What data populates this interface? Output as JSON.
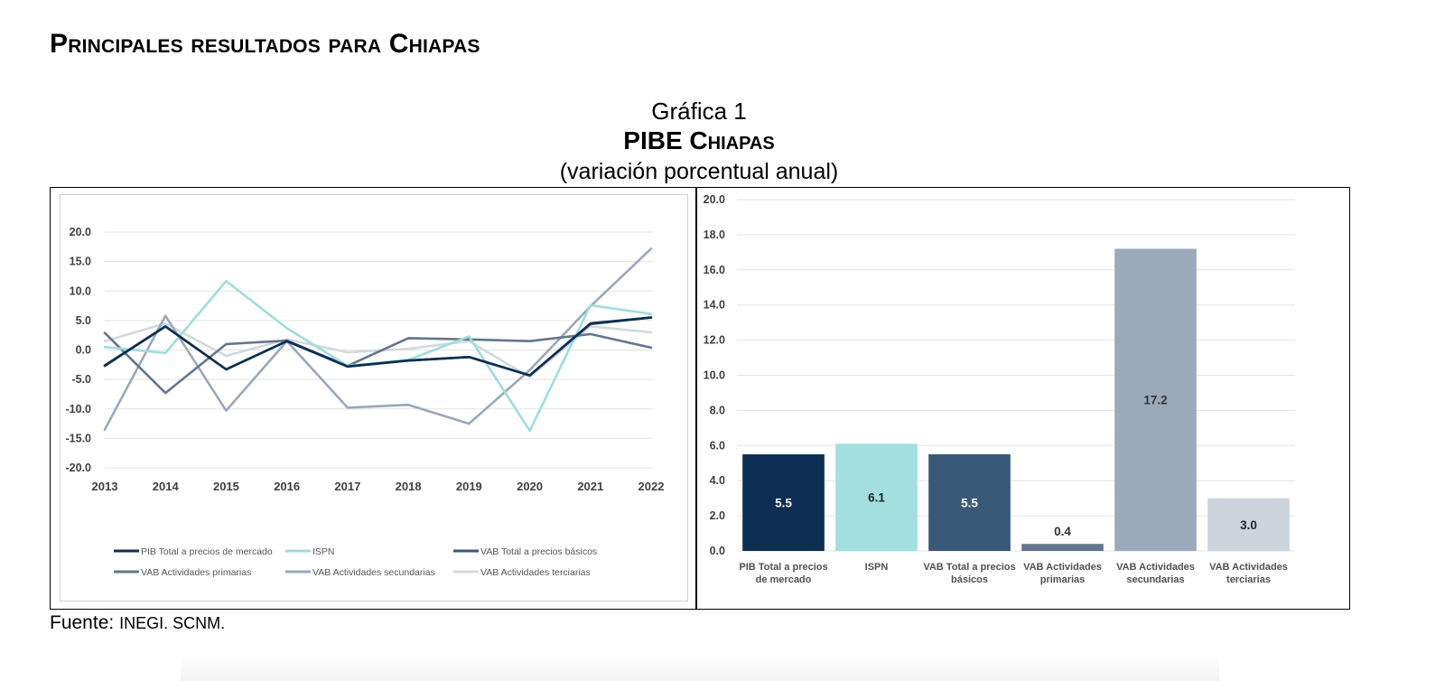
{
  "page": {
    "heading": "Principales resultados para Chiapas",
    "chart_title": "Gráfica 1",
    "chart_subtitle": "PIBE Chiapas",
    "chart_unit": "(variación porcentual anual)",
    "source_label": "Fuente:",
    "source_value": "INEGI. SCNM."
  },
  "chart_data": [
    {
      "type": "line",
      "title": "",
      "x": [
        "2013",
        "2014",
        "2015",
        "2016",
        "2017",
        "2018",
        "2019",
        "2020",
        "2021",
        "2022"
      ],
      "ylim": [
        -20,
        20
      ],
      "yticks": [
        "20.0",
        "15.0",
        "10.0",
        "5.0",
        "0.0",
        "-5.0",
        "-10.0",
        "-15.0",
        "-20.0"
      ],
      "legend_position": "bottom",
      "series": [
        {
          "name": "PIB Total a precios de mercado",
          "color": "#0b2e52",
          "values": [
            -2.7,
            4.0,
            -3.3,
            1.5,
            -2.8,
            -1.8,
            -1.2,
            -4.3,
            4.5,
            5.5
          ]
        },
        {
          "name": "ISPN",
          "color": "#9fdcdc",
          "values": [
            0.5,
            -0.5,
            11.7,
            3.7,
            -2.7,
            -1.7,
            2.3,
            -13.7,
            7.6,
            6.1
          ]
        },
        {
          "name": "VAB Total a precios básicos",
          "color": "#3a5878",
          "values": [
            -2.6,
            4.0,
            -3.3,
            1.5,
            -2.8,
            -1.8,
            -1.2,
            -4.3,
            4.4,
            5.5
          ]
        },
        {
          "name": "VAB Actividades primarias",
          "color": "#63768c",
          "values": [
            2.9,
            -7.3,
            1.0,
            1.6,
            -2.7,
            2.0,
            1.8,
            1.5,
            2.7,
            0.4
          ]
        },
        {
          "name": "VAB Actividades secundarias",
          "color": "#99a8b9",
          "values": [
            -13.5,
            5.8,
            -10.3,
            1.5,
            -9.8,
            -9.3,
            -12.5,
            -3.4,
            7.4,
            17.2
          ]
        },
        {
          "name": "VAB Actividades terciarias",
          "color": "#d3d8df",
          "values": [
            1.5,
            4.5,
            -1.0,
            1.8,
            -0.4,
            0.2,
            1.5,
            -4.6,
            4.0,
            3.0
          ]
        }
      ]
    },
    {
      "type": "bar",
      "title": "",
      "categories": [
        [
          "PIB Total a precios",
          "de mercado"
        ],
        [
          "ISPN"
        ],
        [
          "VAB Total a precios",
          "básicos"
        ],
        [
          "VAB Actividades",
          "primarias"
        ],
        [
          "VAB Actividades",
          "secundarias"
        ],
        [
          "VAB Actividades",
          "terciarias"
        ]
      ],
      "values": [
        5.5,
        6.1,
        5.5,
        0.4,
        17.2,
        3.0
      ],
      "value_labels": [
        "5.5",
        "6.1",
        "5.5",
        "0.4",
        "17.2",
        "3.0"
      ],
      "colors": [
        "#0b2e52",
        "#a3dfdf",
        "#3a5878",
        "#63768c",
        "#9aaabb",
        "#cdd4dc"
      ],
      "label_colors": [
        "#ffffff",
        "#222222",
        "#ffffff",
        "#333333",
        "#333333",
        "#222222"
      ],
      "ylim": [
        0,
        20
      ],
      "yticks": [
        "0.0",
        "2.0",
        "4.0",
        "6.0",
        "8.0",
        "10.0",
        "12.0",
        "14.0",
        "16.0",
        "18.0",
        "20.0"
      ]
    }
  ]
}
